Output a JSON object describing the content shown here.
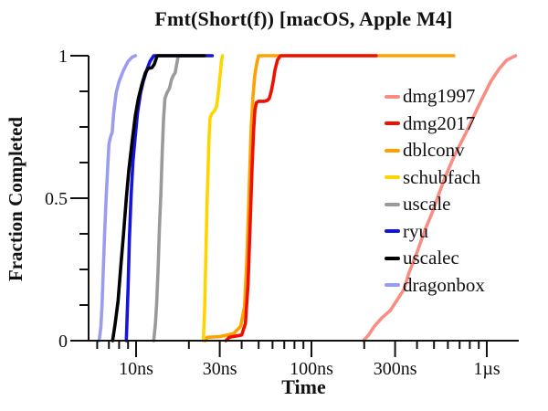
{
  "chart_data": {
    "type": "line",
    "title": "Fmt(Short(f)) [macOS, Apple M4]",
    "xlabel": "Time",
    "ylabel": "Fraction Completed",
    "grid": false,
    "legend_position": "inside-right",
    "x_axis": {
      "scale": "log",
      "unit": "ns",
      "range_ns": [
        5.36,
        1522
      ],
      "major_ticks": [
        {
          "value_ns": 10,
          "label": "10ns"
        },
        {
          "value_ns": 30,
          "label": "30ns"
        },
        {
          "value_ns": 100,
          "label": "100ns"
        },
        {
          "value_ns": 300,
          "label": "300ns"
        },
        {
          "value_ns": 1000,
          "label": "1µs"
        }
      ],
      "minor_ticks_ns": [
        6,
        7,
        8,
        9,
        20,
        40,
        50,
        60,
        70,
        80,
        90,
        200,
        400,
        500,
        600,
        700,
        800,
        900
      ]
    },
    "y_axis": {
      "range": [
        0,
        1
      ],
      "major_ticks": [
        {
          "value": 0,
          "label": "0"
        },
        {
          "value": 0.5,
          "label": "0.5"
        },
        {
          "value": 1,
          "label": "1"
        }
      ],
      "minor_ticks": [
        0.125,
        0.25,
        0.375,
        0.625,
        0.75,
        0.875
      ]
    },
    "draw_order": [
      "dmg1997",
      "dblconv",
      "dmg2017",
      "schubfach",
      "uscale",
      "dragonbox",
      "ryu",
      "uscalec"
    ],
    "series": [
      {
        "name": "dmg1997",
        "color": "#f88d84",
        "points_ns_fraction": [
          [
            198,
            0
          ],
          [
            212,
            0.02
          ],
          [
            228,
            0.05
          ],
          [
            252,
            0.08
          ],
          [
            281,
            0.105
          ],
          [
            310,
            0.145
          ],
          [
            337,
            0.18
          ],
          [
            361,
            0.24
          ],
          [
            400,
            0.31
          ],
          [
            445,
            0.39
          ],
          [
            489,
            0.45
          ],
          [
            530,
            0.51
          ],
          [
            575,
            0.57
          ],
          [
            649,
            0.645
          ],
          [
            762,
            0.73
          ],
          [
            891,
            0.82
          ],
          [
            1055,
            0.91
          ],
          [
            1180,
            0.955
          ],
          [
            1300,
            0.985
          ],
          [
            1460,
            1.0
          ]
        ]
      },
      {
        "name": "dmg2017",
        "color": "#ee1100",
        "points_ns_fraction": [
          [
            32.5,
            0
          ],
          [
            34,
            0.012
          ],
          [
            40,
            0.02
          ],
          [
            42,
            0.06
          ],
          [
            43.5,
            0.2
          ],
          [
            44.8,
            0.42
          ],
          [
            45.8,
            0.6
          ],
          [
            46.8,
            0.74
          ],
          [
            47.6,
            0.81
          ],
          [
            48.5,
            0.835
          ],
          [
            50,
            0.84
          ],
          [
            54,
            0.84
          ],
          [
            56,
            0.843
          ],
          [
            57.5,
            0.85
          ],
          [
            59,
            0.875
          ],
          [
            60.5,
            0.91
          ],
          [
            62,
            0.95
          ],
          [
            64,
            0.985
          ],
          [
            66.5,
            1.0
          ],
          [
            234,
            1.0
          ]
        ]
      },
      {
        "name": "dblconv",
        "color": "#ffa200",
        "points_ns_fraction": [
          [
            24.8,
            0
          ],
          [
            25.5,
            0.012
          ],
          [
            30,
            0.014
          ],
          [
            36,
            0.025
          ],
          [
            39.5,
            0.05
          ],
          [
            41.5,
            0.12
          ],
          [
            42.8,
            0.28
          ],
          [
            43.7,
            0.45
          ],
          [
            44.5,
            0.6
          ],
          [
            45.4,
            0.75
          ],
          [
            46.3,
            0.85
          ],
          [
            47.5,
            0.93
          ],
          [
            48.8,
            0.975
          ],
          [
            50,
            1.0
          ],
          [
            648,
            1.0
          ]
        ]
      },
      {
        "name": "schubfach",
        "color": "#ffd500",
        "points_ns_fraction": [
          [
            24.2,
            0
          ],
          [
            24.6,
            0.12
          ],
          [
            25.0,
            0.3
          ],
          [
            25.4,
            0.48
          ],
          [
            25.8,
            0.62
          ],
          [
            26.1,
            0.72
          ],
          [
            26.4,
            0.78
          ],
          [
            26.9,
            0.795
          ],
          [
            27.9,
            0.805
          ],
          [
            28.7,
            0.82
          ],
          [
            29.2,
            0.85
          ],
          [
            29.7,
            0.89
          ],
          [
            30.2,
            0.94
          ],
          [
            30.7,
            0.98
          ],
          [
            31.1,
            1.0
          ]
        ]
      },
      {
        "name": "uscale",
        "color": "#9a9a9a",
        "points_ns_fraction": [
          [
            12.6,
            0
          ],
          [
            12.9,
            0.06
          ],
          [
            13.1,
            0.13
          ],
          [
            13.35,
            0.25
          ],
          [
            13.6,
            0.4
          ],
          [
            13.85,
            0.52
          ],
          [
            14.1,
            0.66
          ],
          [
            14.35,
            0.78
          ],
          [
            14.6,
            0.85
          ],
          [
            15.0,
            0.87
          ],
          [
            15.5,
            0.885
          ],
          [
            15.9,
            0.915
          ],
          [
            16.3,
            0.93
          ],
          [
            16.7,
            0.94
          ],
          [
            17.0,
            0.965
          ],
          [
            17.4,
            1.0
          ],
          [
            19.8,
            1.0
          ]
        ]
      },
      {
        "name": "ryu",
        "color": "#1414dd",
        "points_ns_fraction": [
          [
            8.8,
            0
          ],
          [
            9.0,
            0.18
          ],
          [
            9.15,
            0.35
          ],
          [
            9.35,
            0.5
          ],
          [
            9.6,
            0.63
          ],
          [
            9.9,
            0.72
          ],
          [
            10.2,
            0.8
          ],
          [
            10.6,
            0.87
          ],
          [
            11.0,
            0.91
          ],
          [
            11.5,
            0.95
          ],
          [
            12.0,
            0.98
          ],
          [
            12.6,
            1.0
          ],
          [
            27.2,
            1.0
          ]
        ]
      },
      {
        "name": "uscalec",
        "color": "#000000",
        "points_ns_fraction": [
          [
            7.35,
            0
          ],
          [
            7.6,
            0.06
          ],
          [
            7.9,
            0.14
          ],
          [
            8.2,
            0.27
          ],
          [
            8.5,
            0.38
          ],
          [
            8.8,
            0.5
          ],
          [
            9.1,
            0.6
          ],
          [
            9.5,
            0.7
          ],
          [
            9.9,
            0.79
          ],
          [
            10.3,
            0.85
          ],
          [
            10.8,
            0.9
          ],
          [
            11.3,
            0.94
          ],
          [
            11.7,
            0.955
          ],
          [
            12.3,
            0.958
          ],
          [
            12.7,
            0.97
          ],
          [
            13.2,
            1.0
          ],
          [
            24.6,
            1.0
          ]
        ]
      },
      {
        "name": "dragonbox",
        "color": "#9a9cee",
        "points_ns_fraction": [
          [
            6.15,
            0
          ],
          [
            6.3,
            0.05
          ],
          [
            6.4,
            0.13
          ],
          [
            6.5,
            0.25
          ],
          [
            6.62,
            0.38
          ],
          [
            6.75,
            0.5
          ],
          [
            6.9,
            0.62
          ],
          [
            7.0,
            0.69
          ],
          [
            7.15,
            0.715
          ],
          [
            7.3,
            0.73
          ],
          [
            7.45,
            0.8
          ],
          [
            7.7,
            0.87
          ],
          [
            8.0,
            0.91
          ],
          [
            8.5,
            0.95
          ],
          [
            9.0,
            0.98
          ],
          [
            9.5,
            0.995
          ],
          [
            9.9,
            1.0
          ]
        ]
      }
    ],
    "legend_order": [
      "dmg1997",
      "dmg2017",
      "dblconv",
      "schubfach",
      "uscale",
      "ryu",
      "uscalec",
      "dragonbox"
    ]
  }
}
